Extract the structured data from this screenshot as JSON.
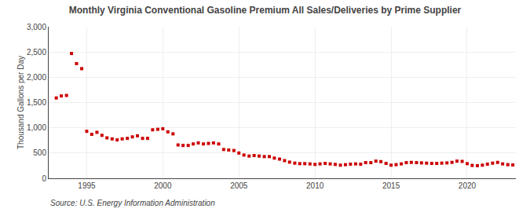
{
  "chart_data": {
    "type": "scatter",
    "title": "Monthly Virginia Conventional Gasoline Premium All Sales/Deliveries by Prime Supplier",
    "ylabel": "Thousand Gallons per Day",
    "annotations": [
      "Source: U.S. Energy Information Administration"
    ],
    "color": "#cc0000",
    "marker": "square",
    "grid": true,
    "xlim": [
      1992.5,
      2023.2
    ],
    "xticks": [
      1995,
      2000,
      2005,
      2010,
      2015,
      2020
    ],
    "ylim": [
      0,
      3000
    ],
    "yticks": [
      0,
      500,
      {
        "value": 1000,
        "label": "1,000"
      },
      {
        "value": 1500,
        "label": "1,500"
      },
      {
        "value": 2000,
        "label": "2,000"
      },
      {
        "value": 2500,
        "label": "2,500"
      },
      {
        "value": 3000,
        "label": "3,000"
      }
    ],
    "x": [
      1993.0,
      1993.33,
      1993.67,
      1994.0,
      1994.33,
      1994.67,
      1995.0,
      1995.33,
      1995.67,
      1996.0,
      1996.33,
      1996.67,
      1997.0,
      1997.33,
      1997.67,
      1998.0,
      1998.33,
      1998.67,
      1999.0,
      1999.33,
      1999.67,
      2000.0,
      2000.33,
      2000.67,
      2001.0,
      2001.33,
      2001.67,
      2002.0,
      2002.33,
      2002.67,
      2003.0,
      2003.33,
      2003.67,
      2004.0,
      2004.33,
      2004.67,
      2005.0,
      2005.33,
      2005.67,
      2006.0,
      2006.33,
      2006.67,
      2007.0,
      2007.33,
      2007.67,
      2008.0,
      2008.33,
      2008.67,
      2009.0,
      2009.33,
      2009.67,
      2010.0,
      2010.33,
      2010.67,
      2011.0,
      2011.33,
      2011.67,
      2012.0,
      2012.33,
      2012.67,
      2013.0,
      2013.33,
      2013.67,
      2014.0,
      2014.33,
      2014.67,
      2015.0,
      2015.33,
      2015.67,
      2016.0,
      2016.33,
      2016.67,
      2017.0,
      2017.33,
      2017.67,
      2018.0,
      2018.33,
      2018.67,
      2019.0,
      2019.33,
      2019.67,
      2020.0,
      2020.33,
      2020.67,
      2021.0,
      2021.33,
      2021.67,
      2022.0,
      2022.33,
      2022.67,
      2023.0
    ],
    "values": [
      1590,
      1630,
      1640,
      2470,
      2270,
      2170,
      930,
      870,
      910,
      850,
      800,
      780,
      760,
      780,
      790,
      820,
      840,
      790,
      790,
      960,
      970,
      980,
      920,
      880,
      660,
      650,
      650,
      680,
      700,
      680,
      690,
      700,
      680,
      570,
      560,
      550,
      500,
      460,
      440,
      450,
      440,
      430,
      430,
      400,
      380,
      350,
      320,
      300,
      290,
      290,
      285,
      275,
      285,
      295,
      285,
      275,
      260,
      270,
      280,
      285,
      280,
      310,
      310,
      340,
      330,
      295,
      260,
      270,
      285,
      310,
      315,
      310,
      305,
      300,
      295,
      295,
      300,
      305,
      315,
      340,
      335,
      290,
      255,
      250,
      260,
      280,
      300,
      315,
      285,
      270,
      265
    ]
  }
}
